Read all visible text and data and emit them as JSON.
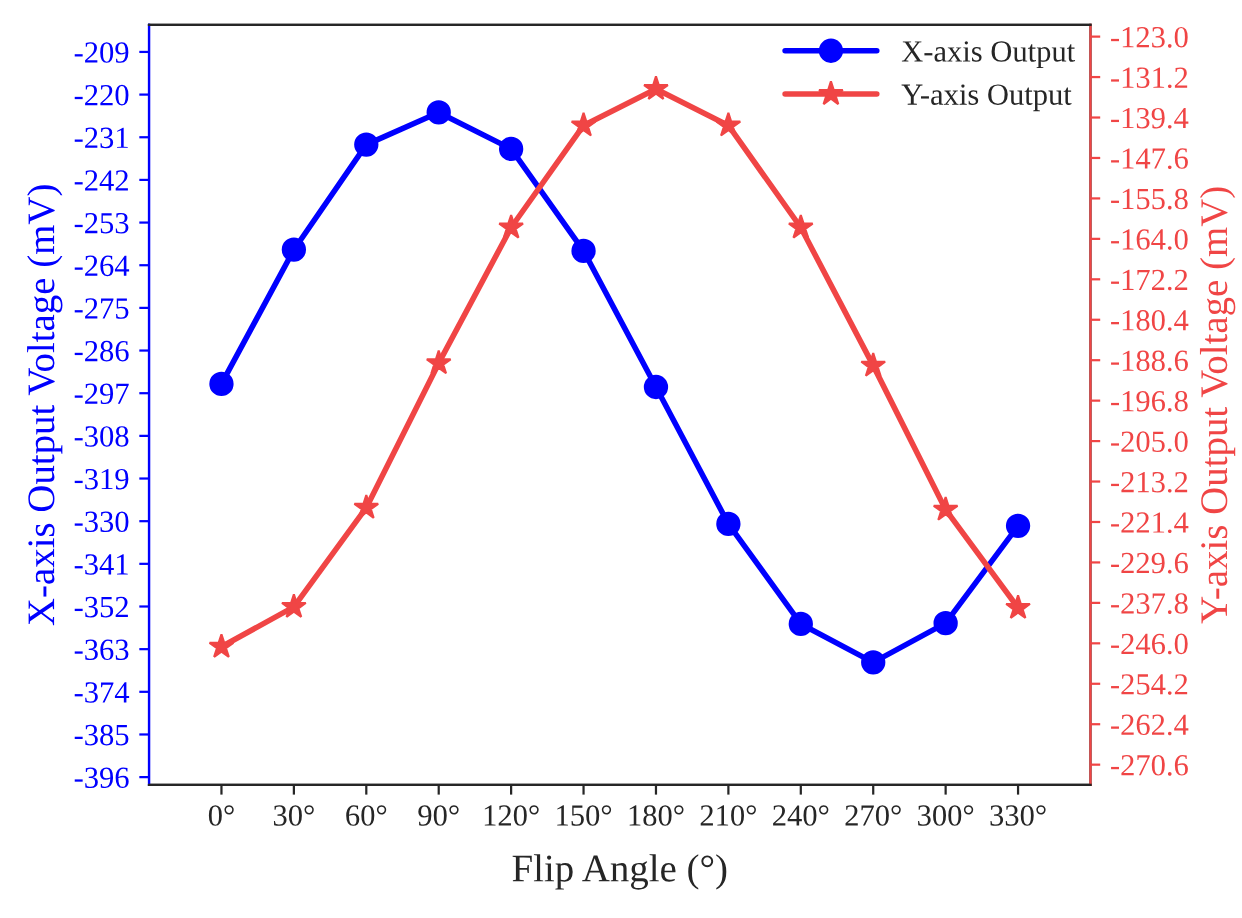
{
  "chart_data": {
    "type": "line",
    "xlabel": "Flip Angle (°)",
    "ylabel": "X-axis Output Voltage (mV)",
    "y2label": "Y-axis Output Voltage (mV)",
    "x": [
      0,
      30,
      60,
      90,
      120,
      150,
      180,
      210,
      240,
      270,
      300,
      330
    ],
    "xlim": [
      -30,
      360
    ],
    "xticks": [
      {
        "value": 0,
        "label": "0°"
      },
      {
        "value": 30,
        "label": "30°"
      },
      {
        "value": 60,
        "label": "60°"
      },
      {
        "value": 90,
        "label": "90°"
      },
      {
        "value": 120,
        "label": "120°"
      },
      {
        "value": 150,
        "label": "150°"
      },
      {
        "value": 180,
        "label": "180°"
      },
      {
        "value": 210,
        "label": "210°"
      },
      {
        "value": 240,
        "label": "240°"
      },
      {
        "value": 270,
        "label": "270°"
      },
      {
        "value": 300,
        "label": "300°"
      },
      {
        "value": 330,
        "label": "330°"
      }
    ],
    "ylim": [
      -398,
      -202
    ],
    "yticks": [
      -209,
      -220,
      -231,
      -242,
      -253,
      -264,
      -275,
      -286,
      -297,
      -308,
      -319,
      -330,
      -341,
      -352,
      -363,
      -374,
      -385,
      -396
    ],
    "y2lim": [
      -274.7,
      -120.6
    ],
    "y2ticks": [
      {
        "value": -123.0,
        "label": "-123.0"
      },
      {
        "value": -131.2,
        "label": "-131.2"
      },
      {
        "value": -139.4,
        "label": "-139.4"
      },
      {
        "value": -147.6,
        "label": "-147.6"
      },
      {
        "value": -155.8,
        "label": "-155.8"
      },
      {
        "value": -164.0,
        "label": "-164.0"
      },
      {
        "value": -172.2,
        "label": "-172.2"
      },
      {
        "value": -180.4,
        "label": "-180.4"
      },
      {
        "value": -188.6,
        "label": "-188.6"
      },
      {
        "value": -196.8,
        "label": "-196.8"
      },
      {
        "value": -205.0,
        "label": "-205.0"
      },
      {
        "value": -213.2,
        "label": "-213.2"
      },
      {
        "value": -221.4,
        "label": "-221.4"
      },
      {
        "value": -229.6,
        "label": "-229.6"
      },
      {
        "value": -237.8,
        "label": "-237.8"
      },
      {
        "value": -246.0,
        "label": "-246.0"
      },
      {
        "value": -254.2,
        "label": "-254.2"
      },
      {
        "value": -262.4,
        "label": "-262.4"
      },
      {
        "value": -270.6,
        "label": "-270.6"
      }
    ],
    "series": [
      {
        "name": "X-axis Output",
        "color": "#0000ff",
        "marker": "circle",
        "axis": "y",
        "values": [
          -294.6,
          -260,
          -232.9,
          -224.6,
          -234,
          -260.3,
          -295.4,
          -330.7,
          -356.5,
          -366.4,
          -356.3,
          -331.2
        ]
      },
      {
        "name": "Y-axis Output",
        "color": "#f04545",
        "marker": "star",
        "axis": "y2",
        "values": [
          -246.7,
          -238.6,
          -218.5,
          -189.2,
          -161.7,
          -141,
          -133.6,
          -141,
          -161.7,
          -189.7,
          -218.9,
          -238.8
        ]
      }
    ],
    "line_style": "solid",
    "grid": false,
    "legend": "top right"
  }
}
